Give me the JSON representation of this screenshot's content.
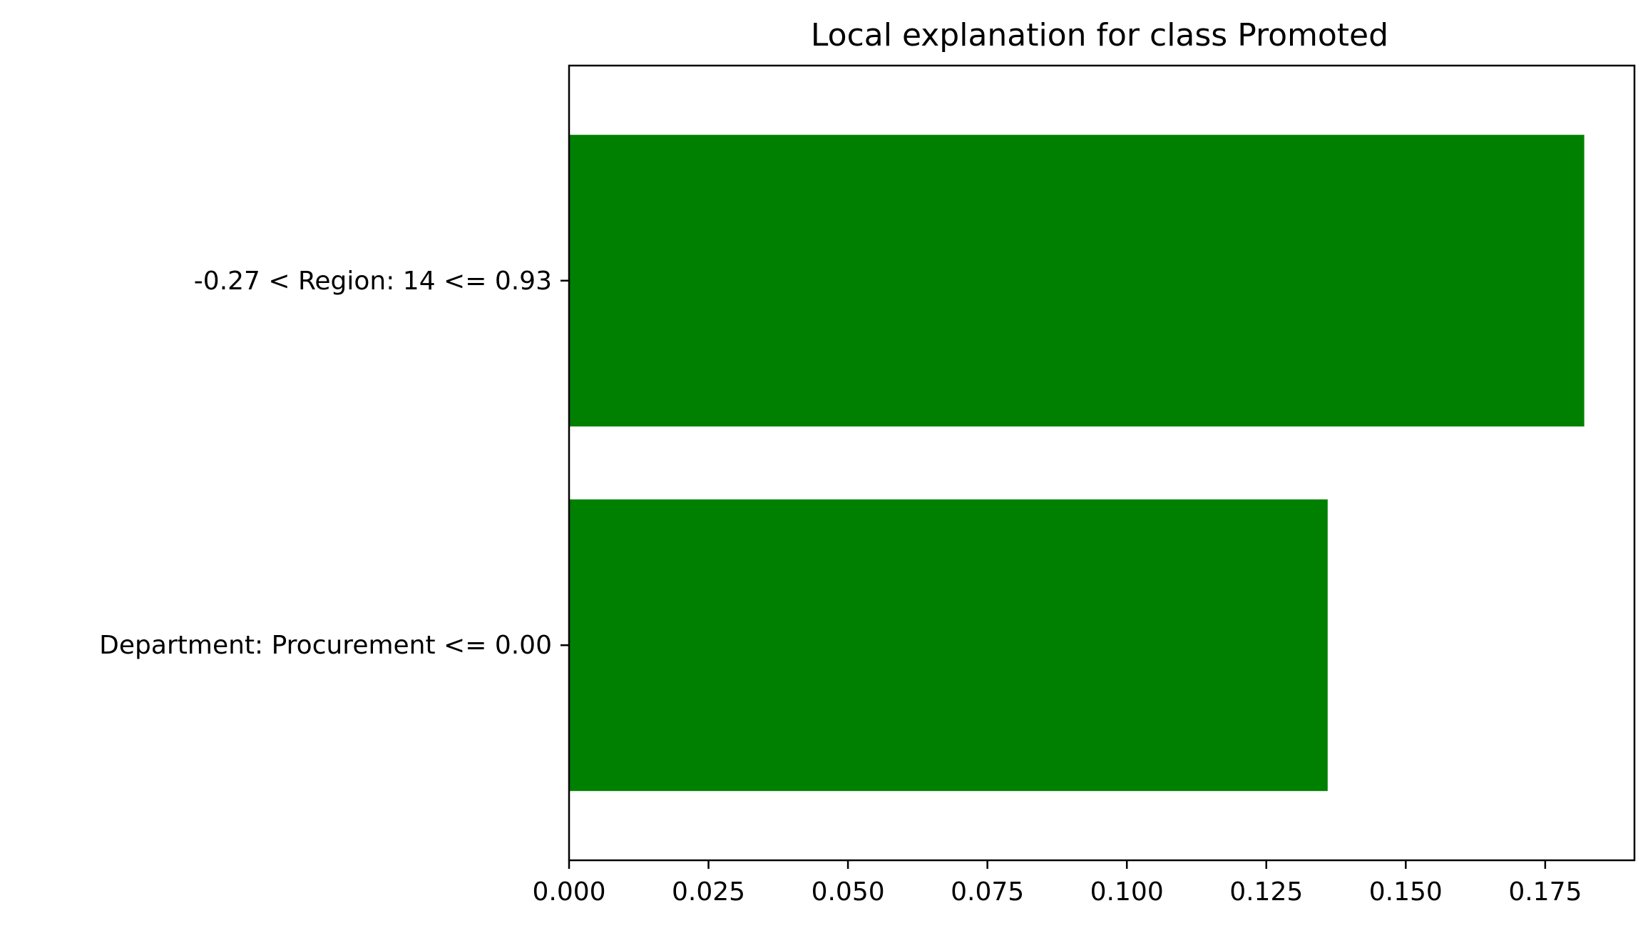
{
  "chart_data": {
    "type": "bar",
    "orientation": "horizontal",
    "title": "Local explanation for class Promoted",
    "xlabel": "",
    "ylabel": "",
    "categories": [
      "Department: Procurement <= 0.00",
      "-0.27 < Region: 14 <= 0.93"
    ],
    "values": [
      0.136,
      0.182
    ],
    "bar_color": "#008000",
    "xlim": [
      0,
      0.191
    ],
    "xticks": [
      0.0,
      0.025,
      0.05,
      0.075,
      0.1,
      0.125,
      0.15,
      0.175
    ],
    "xtick_labels": [
      "0.000",
      "0.025",
      "0.050",
      "0.075",
      "0.100",
      "0.125",
      "0.150",
      "0.175"
    ],
    "grid": false,
    "legend": "none"
  }
}
